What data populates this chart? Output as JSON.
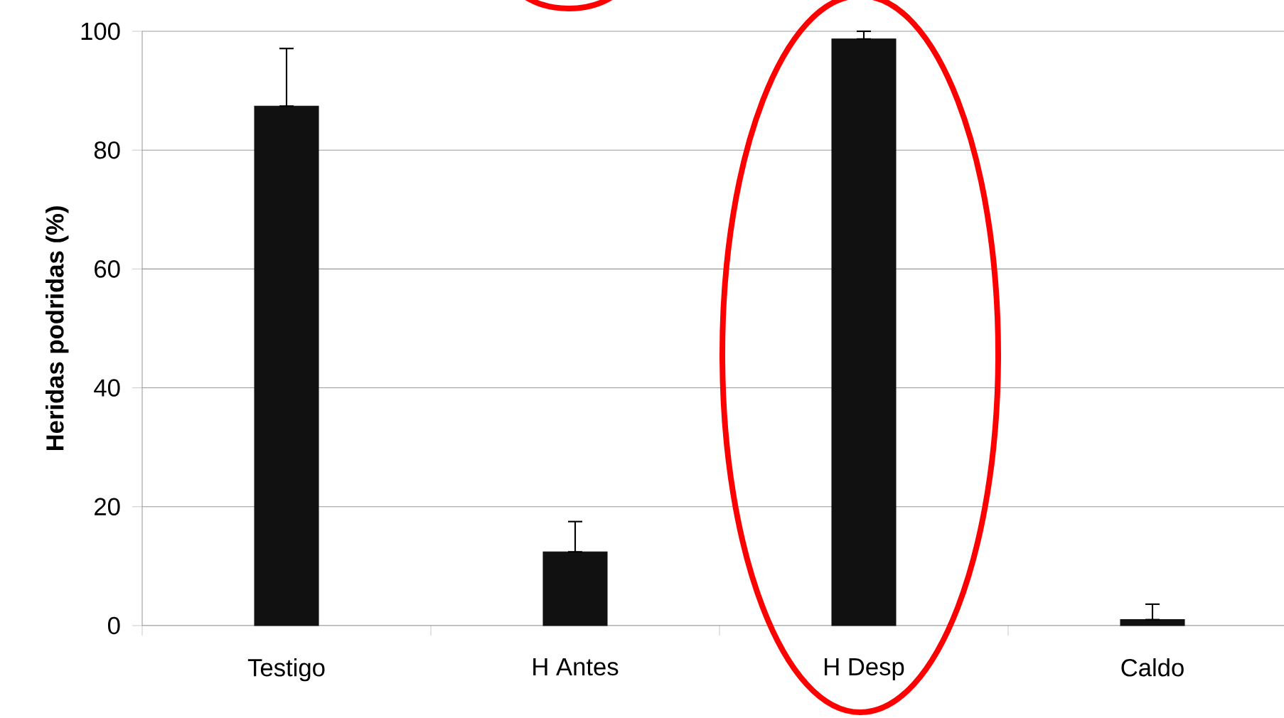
{
  "chart_data": {
    "type": "bar",
    "categories": [
      "Testigo",
      "H Antes",
      "H Desp",
      "Caldo"
    ],
    "values": [
      87.4,
      12.4,
      98.7,
      1.0
    ],
    "errors": [
      [
        87.4,
        97.1
      ],
      [
        12.4,
        17.5
      ],
      [
        98.7,
        100
      ],
      [
        1.0,
        3.6
      ]
    ],
    "color": "#111111",
    "ylabel": "Heridas podridas (%)",
    "ylim": [
      0,
      100
    ],
    "yticks": [
      0,
      20,
      40,
      60,
      80,
      100
    ],
    "grid": "y"
  }
}
